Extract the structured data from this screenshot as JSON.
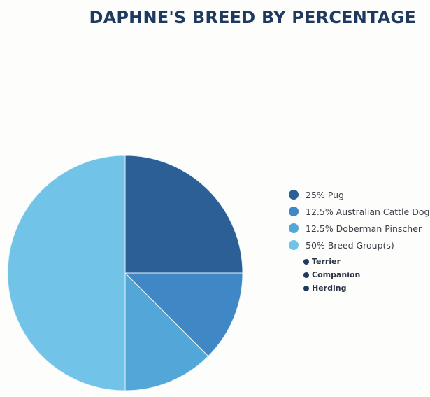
{
  "title": "DAPHNE'S BREED BY PERCENTAGE",
  "legend": {
    "items": [
      {
        "label": "25% Pug",
        "color": "#2b5f96"
      },
      {
        "label": "12.5% Australian Cattle Dog",
        "color": "#3f88c5"
      },
      {
        "label": "12.5% Doberman Pinscher",
        "color": "#52a6d8"
      },
      {
        "label": "50% Breed Group(s)",
        "color": "#72c3e8"
      }
    ],
    "sub_items": [
      {
        "label": "Terrier"
      },
      {
        "label": "Companion"
      },
      {
        "label": "Herding"
      }
    ]
  },
  "chart_data": {
    "type": "pie",
    "title": "DAPHNE'S BREED BY PERCENTAGE",
    "categories": [
      "Pug",
      "Australian Cattle Dog",
      "Doberman Pinscher",
      "Breed Group(s)"
    ],
    "values": [
      25,
      12.5,
      12.5,
      50
    ],
    "colors": [
      "#2b5f96",
      "#3f88c5",
      "#52a6d8",
      "#72c3e8"
    ],
    "start_angle": "12 o'clock, clockwise",
    "legend_position": "right",
    "breed_group_subcategories": [
      "Terrier",
      "Companion",
      "Herding"
    ]
  }
}
